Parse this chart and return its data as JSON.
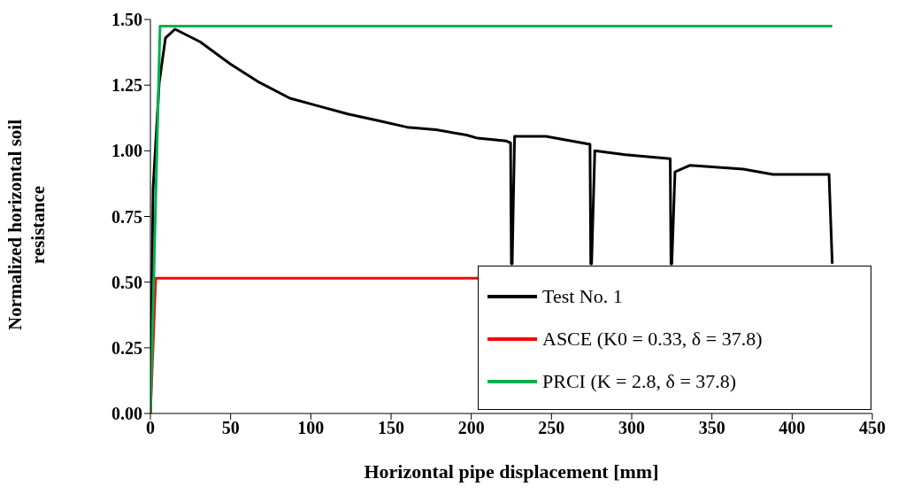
{
  "chart_data": {
    "type": "line",
    "xlabel": "Horizontal  pipe displacement  [mm]",
    "ylabel": "Normalized  horizontal  soil resistance",
    "xlim": [
      0,
      450
    ],
    "xticks": [
      0,
      50,
      100,
      150,
      200,
      250,
      300,
      350,
      400,
      450
    ],
    "ylim": [
      0,
      1.5
    ],
    "yticks": [
      {
        "value": 0,
        "label": "0.00"
      },
      {
        "value": 0.25,
        "label": "0.25"
      },
      {
        "value": 0.5,
        "label": "0.50"
      },
      {
        "value": 0.75,
        "label": "0.75"
      },
      {
        "value": 1,
        "label": "1.00"
      },
      {
        "value": 1.25,
        "label": "1.25"
      },
      {
        "value": 1.5,
        "label": "1.50"
      }
    ],
    "grid": false,
    "legend": "bottom right",
    "marker": "none",
    "line_style": "solid",
    "series": [
      {
        "name": "Test No. 1",
        "color": "#000000",
        "x": [
          0,
          1.7,
          5.5,
          9.4,
          15.4,
          31,
          50,
          68,
          87,
          105,
          123,
          142,
          160,
          178,
          197,
          204,
          222,
          224.5,
          225,
          225.5,
          227,
          246.5,
          274,
          274.5,
          275,
          277,
          296,
          324,
          324.5,
          325,
          327,
          336.5,
          369.5,
          388,
          423,
          425
        ],
        "values": [
          0,
          0.86,
          1.26,
          1.43,
          1.463,
          1.415,
          1.33,
          1.26,
          1.2,
          1.17,
          1.14,
          1.115,
          1.09,
          1.08,
          1.06,
          1.048,
          1.037,
          1.03,
          0.57,
          0.57,
          1.055,
          1.055,
          1.025,
          0.57,
          0.57,
          1.0,
          0.985,
          0.97,
          0.57,
          0.57,
          0.92,
          0.945,
          0.93,
          0.91,
          0.91,
          0.57
        ]
      },
      {
        "name": "ASCE (K0 = 0.33, δ = 37.8)",
        "color": "#ff0000",
        "x": [
          0,
          3.3,
          204
        ],
        "values": [
          0,
          0.515,
          0.515
        ]
      },
      {
        "name": "PRCI (K = 2.8, δ = 37.8)",
        "color": "#00b050",
        "x": [
          0,
          6,
          425
        ],
        "values": [
          0,
          1.475,
          1.475
        ]
      }
    ]
  }
}
